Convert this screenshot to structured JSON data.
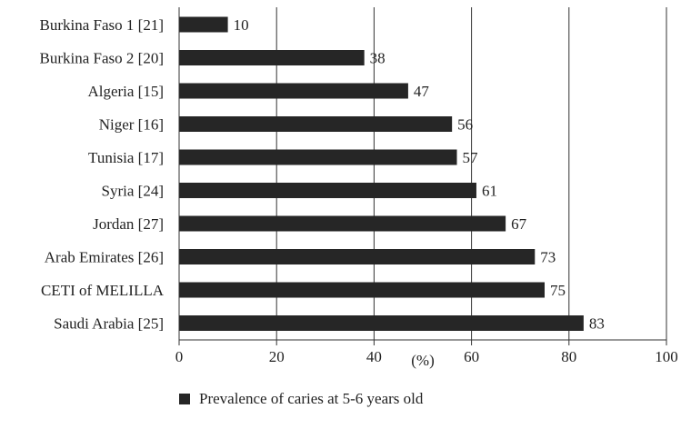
{
  "chart_data": {
    "type": "bar",
    "orientation": "horizontal",
    "categories": [
      "Burkina Faso 1 [21]",
      "Burkina Faso 2 [20]",
      "Algeria [15]",
      "Niger [16]",
      "Tunisia [17]",
      "Syria [24]",
      "Jordan [27]",
      "Arab Emirates [26]",
      "CETI of MELILLA",
      "Saudi Arabia [25]"
    ],
    "series": [
      {
        "name": "Prevalence of caries at 5-6 years old",
        "values": [
          10,
          38,
          47,
          56,
          57,
          61,
          67,
          73,
          75,
          83
        ],
        "color": "#262626"
      }
    ],
    "title": "",
    "xlabel": "(%)",
    "ylabel": "",
    "xlim": [
      0,
      100
    ],
    "xticks": [
      0,
      20,
      40,
      60,
      80,
      100
    ],
    "grid": "vertical",
    "legend": "bottom"
  }
}
